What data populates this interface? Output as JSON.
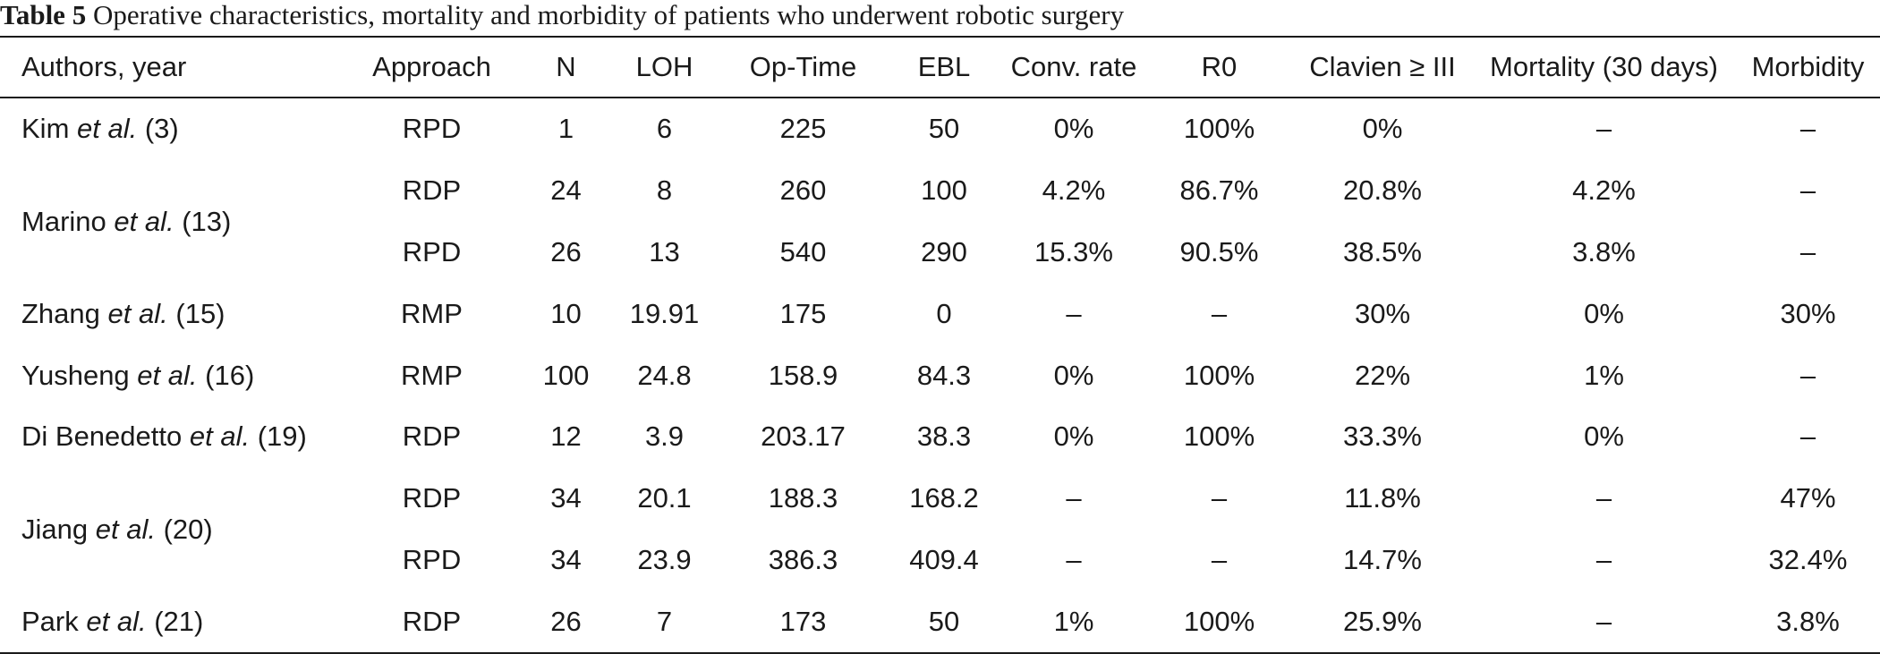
{
  "caption": {
    "label": "Table 5",
    "text": "Operative characteristics, mortality and morbidity of patients who underwent robotic surgery"
  },
  "headers": [
    "Authors, year",
    "Approach",
    "N",
    "LOH",
    "Op-Time",
    "EBL",
    "Conv. rate",
    "R0",
    "Clavien ≥ III",
    "Mortality (30 days)",
    "Morbidity"
  ],
  "groups": [
    {
      "author": "Kim",
      "etal": "et al.",
      "ref": "(3)",
      "rows": [
        [
          "RPD",
          "1",
          "6",
          "225",
          "50",
          "0%",
          "100%",
          "0%",
          "–",
          "–"
        ]
      ]
    },
    {
      "author": "Marino",
      "etal": "et al.",
      "ref": "(13)",
      "rows": [
        [
          "RDP",
          "24",
          "8",
          "260",
          "100",
          "4.2%",
          "86.7%",
          "20.8%",
          "4.2%",
          "–"
        ],
        [
          "RPD",
          "26",
          "13",
          "540",
          "290",
          "15.3%",
          "90.5%",
          "38.5%",
          "3.8%",
          "–"
        ]
      ]
    },
    {
      "author": "Zhang",
      "etal": "et al.",
      "ref": "(15)",
      "rows": [
        [
          "RMP",
          "10",
          "19.91",
          "175",
          "0",
          "–",
          "–",
          "30%",
          "0%",
          "30%"
        ]
      ]
    },
    {
      "author": "Yusheng",
      "etal": "et al.",
      "ref": "(16)",
      "rows": [
        [
          "RMP",
          "100",
          "24.8",
          "158.9",
          "84.3",
          "0%",
          "100%",
          "22%",
          "1%",
          "–"
        ]
      ]
    },
    {
      "author": "Di Benedetto",
      "etal": "et al.",
      "ref": "(19)",
      "rows": [
        [
          "RDP",
          "12",
          "3.9",
          "203.17",
          "38.3",
          "0%",
          "100%",
          "33.3%",
          "0%",
          "–"
        ]
      ]
    },
    {
      "author": "Jiang",
      "etal": "et al.",
      "ref": "(20)",
      "rows": [
        [
          "RDP",
          "34",
          "20.1",
          "188.3",
          "168.2",
          "–",
          "–",
          "11.8%",
          "–",
          "47%"
        ],
        [
          "RPD",
          "34",
          "23.9",
          "386.3",
          "409.4",
          "–",
          "–",
          "14.7%",
          "–",
          "32.4%"
        ]
      ]
    },
    {
      "author": "Park",
      "etal": "et al.",
      "ref": "(21)",
      "rows": [
        [
          "RDP",
          "26",
          "7",
          "173",
          "50",
          "1%",
          "100%",
          "25.9%",
          "–",
          "3.8%"
        ]
      ]
    }
  ]
}
